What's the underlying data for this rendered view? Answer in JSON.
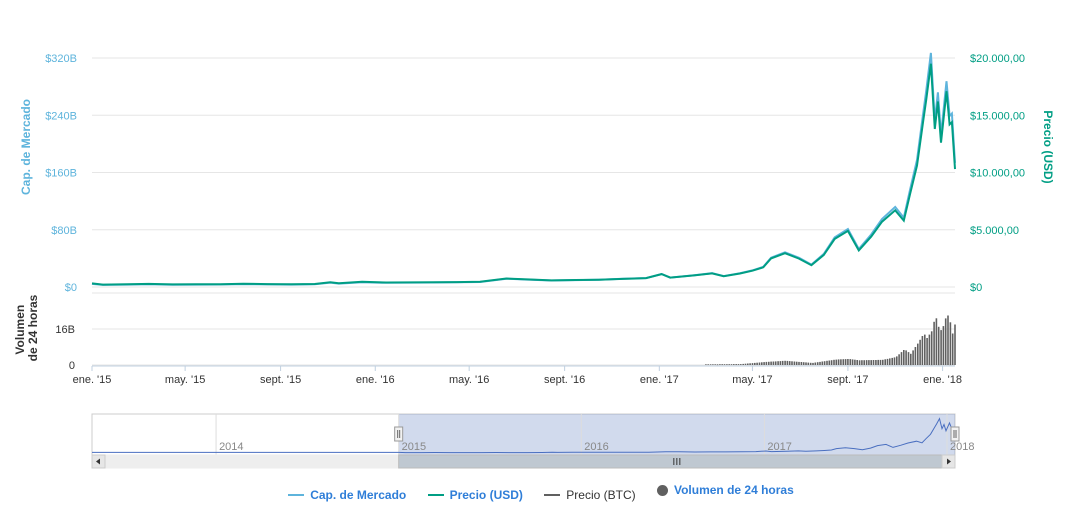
{
  "chart_data": {
    "type": "line",
    "y_axis_left": {
      "label": "Cap. de Mercado",
      "ticks": [
        "$0",
        "$80B",
        "$160B",
        "$240B",
        "$320B"
      ],
      "tick_values": [
        0,
        80,
        160,
        240,
        320
      ],
      "range_billions": [
        0,
        320
      ]
    },
    "y_axis_right": {
      "label": "Precio (USD)",
      "ticks": [
        "$0",
        "$5.000,00",
        "$10.000,00",
        "$15.000,00",
        "$20.000,00"
      ],
      "tick_values": [
        0,
        5000,
        10000,
        15000,
        20000
      ],
      "range": [
        0,
        20000
      ]
    },
    "volume_axis": {
      "label": "Volumen de 24 horas",
      "ticks": [
        "0",
        "16B"
      ],
      "tick_values": [
        0,
        16
      ],
      "range_billions": [
        0,
        32
      ]
    },
    "x_axis": {
      "ticks": [
        "ene. '15",
        "may. '15",
        "sept. '15",
        "ene. '16",
        "may. '16",
        "sept. '16",
        "ene. '17",
        "may. '17",
        "sept. '17",
        "ene. '18"
      ],
      "tick_dates": [
        "2015-01-01",
        "2015-05-01",
        "2015-09-01",
        "2016-01-01",
        "2016-05-01",
        "2016-09-01",
        "2017-01-01",
        "2017-05-01",
        "2017-09-01",
        "2018-01-01"
      ],
      "range": [
        "2015-01-01",
        "2018-01-17"
      ]
    },
    "series": [
      {
        "name": "Precio (USD)",
        "color": "#009e84",
        "points": [
          [
            "2015-01-01",
            315
          ],
          [
            "2015-01-15",
            210
          ],
          [
            "2015-02-15",
            240
          ],
          [
            "2015-03-15",
            270
          ],
          [
            "2015-04-15",
            225
          ],
          [
            "2015-05-15",
            237
          ],
          [
            "2015-06-15",
            245
          ],
          [
            "2015-07-15",
            285
          ],
          [
            "2015-08-15",
            255
          ],
          [
            "2015-09-15",
            232
          ],
          [
            "2015-10-15",
            265
          ],
          [
            "2015-11-04",
            420
          ],
          [
            "2015-11-15",
            330
          ],
          [
            "2015-12-15",
            450
          ],
          [
            "2016-01-15",
            395
          ],
          [
            "2016-02-15",
            405
          ],
          [
            "2016-03-15",
            415
          ],
          [
            "2016-04-15",
            430
          ],
          [
            "2016-05-15",
            455
          ],
          [
            "2016-06-18",
            740
          ],
          [
            "2016-07-15",
            660
          ],
          [
            "2016-08-15",
            575
          ],
          [
            "2016-09-15",
            610
          ],
          [
            "2016-10-15",
            640
          ],
          [
            "2016-11-15",
            710
          ],
          [
            "2016-12-15",
            780
          ],
          [
            "2017-01-04",
            1130
          ],
          [
            "2017-01-15",
            820
          ],
          [
            "2017-02-15",
            1010
          ],
          [
            "2017-03-10",
            1190
          ],
          [
            "2017-03-25",
            940
          ],
          [
            "2017-04-15",
            1180
          ],
          [
            "2017-05-01",
            1420
          ],
          [
            "2017-05-15",
            1720
          ],
          [
            "2017-05-25",
            2500
          ],
          [
            "2017-06-12",
            2950
          ],
          [
            "2017-06-30",
            2480
          ],
          [
            "2017-07-16",
            1900
          ],
          [
            "2017-08-01",
            2800
          ],
          [
            "2017-08-15",
            4200
          ],
          [
            "2017-09-01",
            4900
          ],
          [
            "2017-09-15",
            3200
          ],
          [
            "2017-10-01",
            4400
          ],
          [
            "2017-10-15",
            5700
          ],
          [
            "2017-11-01",
            6700
          ],
          [
            "2017-11-12",
            5800
          ],
          [
            "2017-11-20",
            8100
          ],
          [
            "2017-11-29",
            10600
          ],
          [
            "2017-12-07",
            14500
          ],
          [
            "2017-12-11",
            16400
          ],
          [
            "2017-12-17",
            19500
          ],
          [
            "2017-12-22",
            13800
          ],
          [
            "2017-12-26",
            16200
          ],
          [
            "2017-12-30",
            12600
          ],
          [
            "2018-01-06",
            17100
          ],
          [
            "2018-01-10",
            14200
          ],
          [
            "2018-01-13",
            14400
          ],
          [
            "2018-01-17",
            10300
          ]
        ]
      },
      {
        "name": "Cap. de Mercado",
        "color": "#5eb4dc",
        "unit": "B USD",
        "points": [
          [
            "2015-01-01",
            4.3
          ],
          [
            "2015-01-15",
            2.9
          ],
          [
            "2015-02-15",
            3.4
          ],
          [
            "2015-03-15",
            3.8
          ],
          [
            "2015-04-15",
            3.2
          ],
          [
            "2015-05-15",
            3.4
          ],
          [
            "2015-06-15",
            3.5
          ],
          [
            "2015-07-15",
            4.1
          ],
          [
            "2015-08-15",
            3.7
          ],
          [
            "2015-09-15",
            3.4
          ],
          [
            "2015-10-15",
            3.9
          ],
          [
            "2015-11-04",
            6.1
          ],
          [
            "2015-11-15",
            4.8
          ],
          [
            "2015-12-15",
            6.6
          ],
          [
            "2016-01-15",
            5.9
          ],
          [
            "2016-02-15",
            6.1
          ],
          [
            "2016-03-15",
            6.3
          ],
          [
            "2016-04-15",
            6.6
          ],
          [
            "2016-05-15",
            7.0
          ],
          [
            "2016-06-18",
            11.6
          ],
          [
            "2016-07-15",
            10.4
          ],
          [
            "2016-08-15",
            9.1
          ],
          [
            "2016-09-15",
            9.7
          ],
          [
            "2016-10-15",
            10.2
          ],
          [
            "2016-11-15",
            11.4
          ],
          [
            "2016-12-15",
            12.5
          ],
          [
            "2017-01-04",
            18.2
          ],
          [
            "2017-01-15",
            13.2
          ],
          [
            "2017-02-15",
            16.3
          ],
          [
            "2017-03-10",
            19.3
          ],
          [
            "2017-03-25",
            15.3
          ],
          [
            "2017-04-15",
            19.3
          ],
          [
            "2017-05-01",
            23.2
          ],
          [
            "2017-05-15",
            28.2
          ],
          [
            "2017-05-25",
            41.0
          ],
          [
            "2017-06-12",
            48.5
          ],
          [
            "2017-06-30",
            40.8
          ],
          [
            "2017-07-16",
            31.3
          ],
          [
            "2017-08-01",
            46.3
          ],
          [
            "2017-08-15",
            69.5
          ],
          [
            "2017-09-01",
            81.1
          ],
          [
            "2017-09-15",
            53.1
          ],
          [
            "2017-10-01",
            73.3
          ],
          [
            "2017-10-15",
            95.0
          ],
          [
            "2017-11-01",
            111.8
          ],
          [
            "2017-11-12",
            96.8
          ],
          [
            "2017-11-20",
            135.5
          ],
          [
            "2017-11-29",
            177.4
          ],
          [
            "2017-12-07",
            242.9
          ],
          [
            "2017-12-11",
            274.9
          ],
          [
            "2017-12-17",
            327.1
          ],
          [
            "2017-12-22",
            231.7
          ],
          [
            "2017-12-26",
            272.0
          ],
          [
            "2017-12-30",
            211.8
          ],
          [
            "2018-01-06",
            287.6
          ],
          [
            "2018-01-10",
            239.0
          ],
          [
            "2018-01-13",
            242.5
          ],
          [
            "2018-01-17",
            173.6
          ]
        ]
      },
      {
        "name": "Volumen de 24 horas",
        "color": "#606060",
        "unit": "B USD",
        "points": [
          [
            "2015-01-01",
            0.02
          ],
          [
            "2015-06-01",
            0.02
          ],
          [
            "2016-01-01",
            0.05
          ],
          [
            "2016-06-18",
            0.2
          ],
          [
            "2016-12-01",
            0.1
          ],
          [
            "2017-03-01",
            0.3
          ],
          [
            "2017-04-15",
            0.4
          ],
          [
            "2017-05-15",
            1.3
          ],
          [
            "2017-06-12",
            1.9
          ],
          [
            "2017-07-16",
            0.9
          ],
          [
            "2017-08-15",
            2.4
          ],
          [
            "2017-09-01",
            2.7
          ],
          [
            "2017-09-15",
            2.1
          ],
          [
            "2017-10-15",
            2.3
          ],
          [
            "2017-11-01",
            3.5
          ],
          [
            "2017-11-12",
            7.0
          ],
          [
            "2017-11-20",
            5.0
          ],
          [
            "2017-11-29",
            9.5
          ],
          [
            "2017-12-07",
            14.0
          ],
          [
            "2017-12-11",
            12.0
          ],
          [
            "2017-12-17",
            15.0
          ],
          [
            "2017-12-22",
            22.0
          ],
          [
            "2017-12-26",
            17.0
          ],
          [
            "2017-12-30",
            15.0
          ],
          [
            "2018-01-06",
            23.0
          ],
          [
            "2018-01-10",
            19.0
          ],
          [
            "2018-01-13",
            14.0
          ],
          [
            "2018-01-16",
            18.0
          ],
          [
            "2018-01-17",
            16.0
          ]
        ]
      },
      {
        "name": "Precio (BTC)",
        "color": "#606060",
        "points": []
      }
    ],
    "navigator": {
      "year_labels": [
        "2014",
        "2015",
        "2016",
        "2017",
        "2018"
      ],
      "year_dates": [
        "2014-01-01",
        "2015-01-01",
        "2016-01-01",
        "2017-01-01",
        "2018-01-01"
      ],
      "range": [
        "2013-04-28",
        "2018-01-17"
      ],
      "selected_range": [
        "2015-01-01",
        "2018-01-17"
      ]
    },
    "legend_placement": "bottom",
    "grid": true
  },
  "legend": [
    {
      "label": "Cap. de Mercado",
      "color": "#5eb4dc",
      "symbol": "line"
    },
    {
      "label": "Precio (USD)",
      "color": "#009e84",
      "symbol": "line"
    },
    {
      "label": "Precio (BTC)",
      "color": "#606060",
      "symbol": "line"
    },
    {
      "label": "Volumen de 24 horas",
      "color": "#606060",
      "symbol": "dot"
    }
  ]
}
